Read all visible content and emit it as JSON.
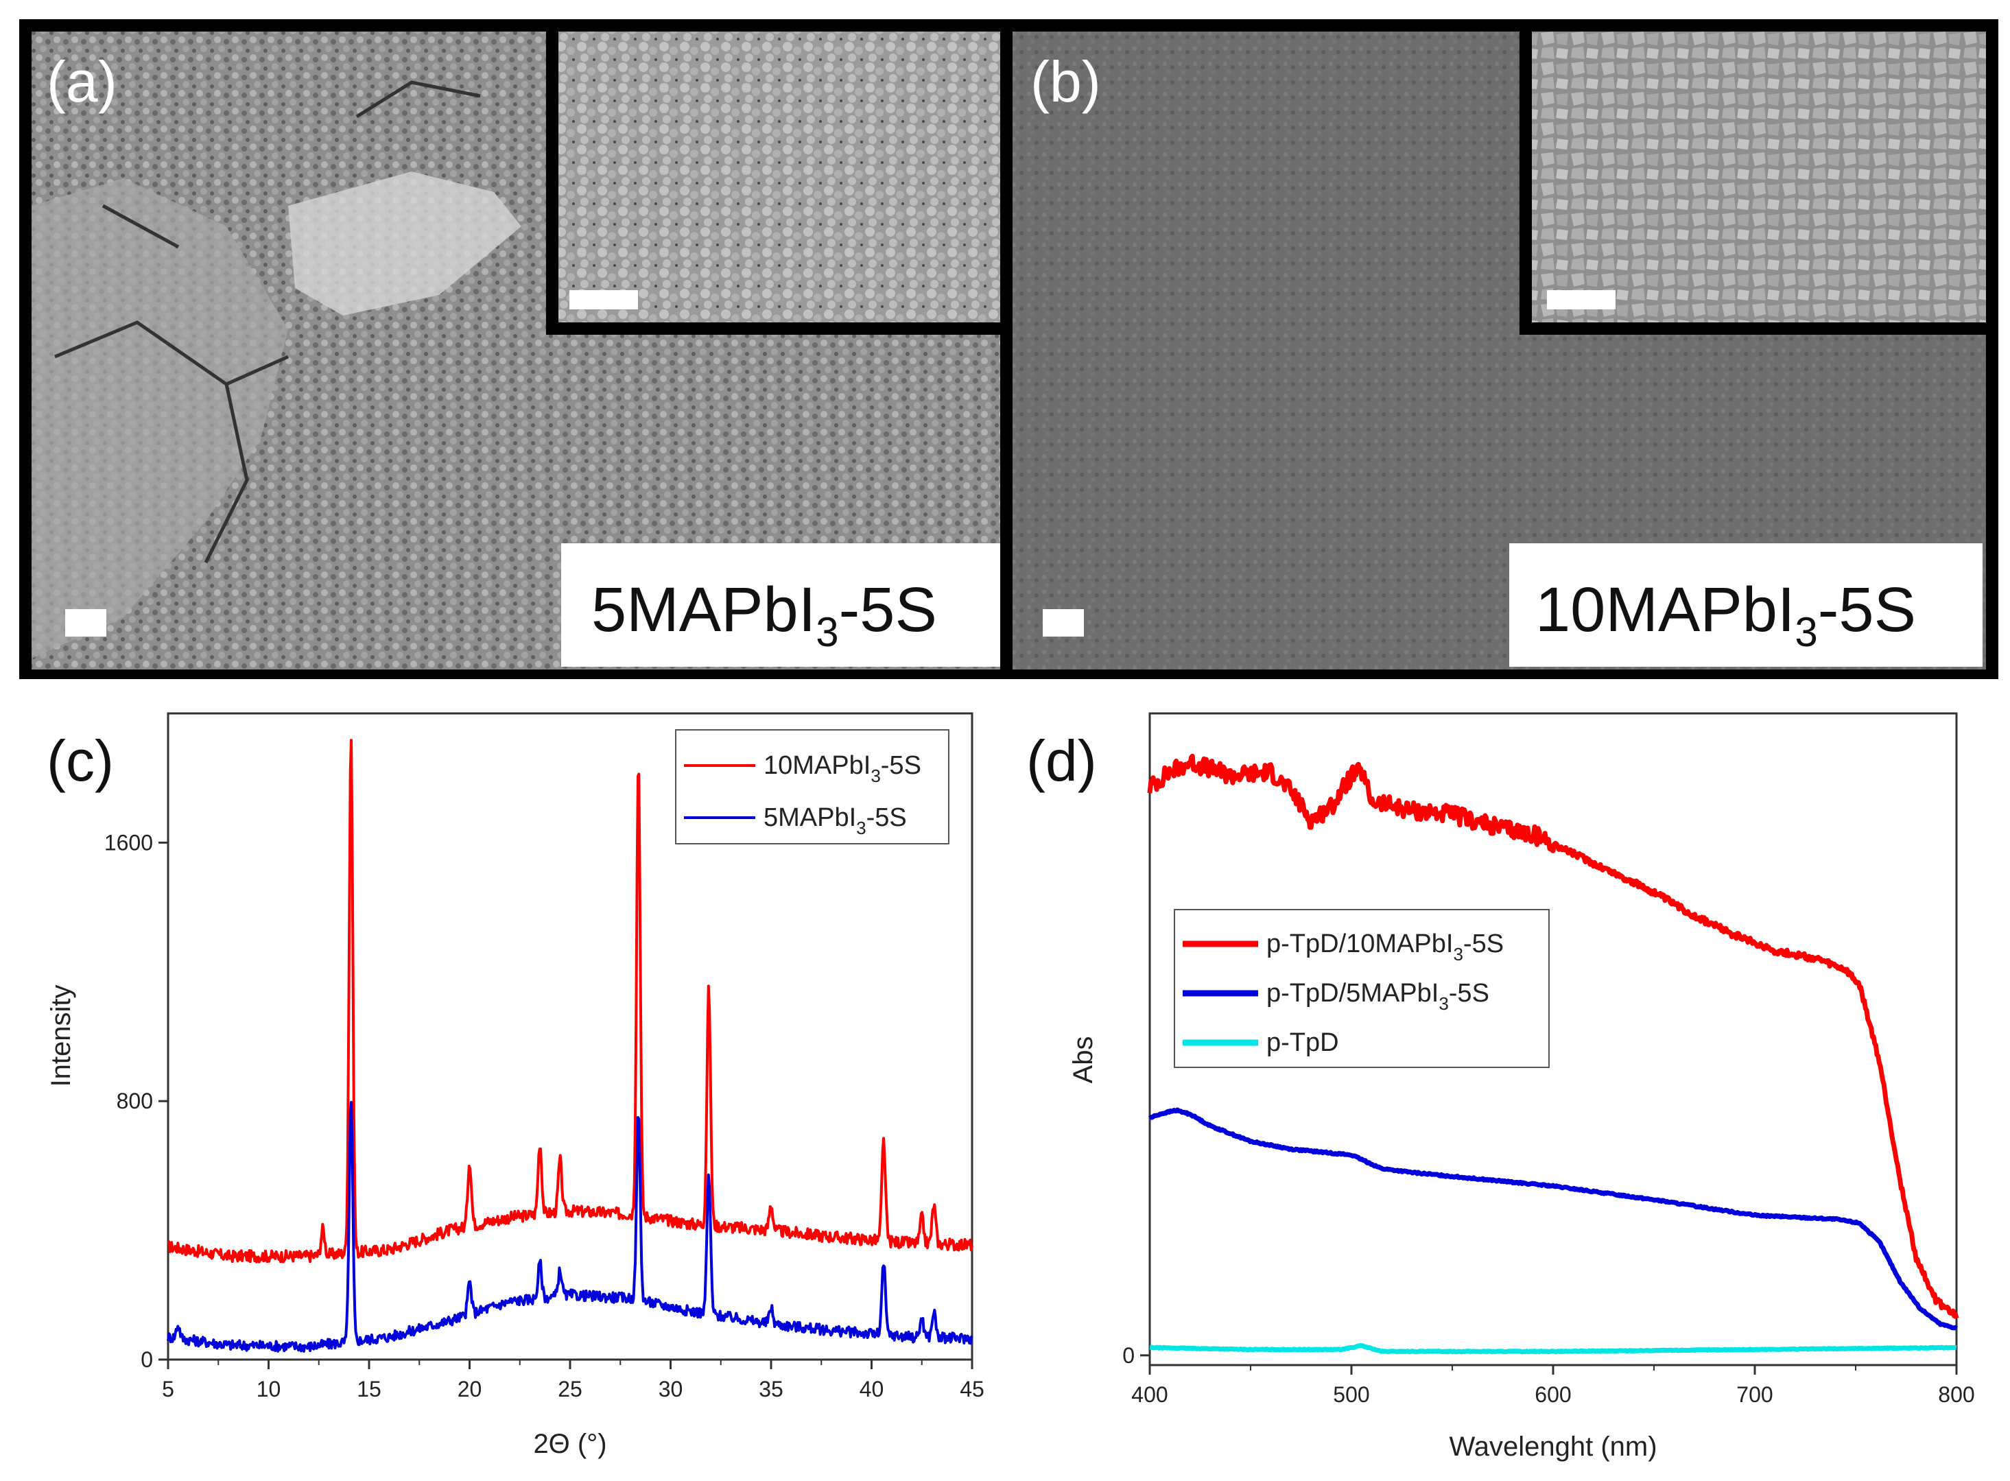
{
  "panels": {
    "a": {
      "label": "(a)",
      "sample_main": "5MAPbI",
      "sample_sub": "3",
      "sample_tail": "-5S"
    },
    "b": {
      "label": "(b)",
      "sample_main": "10MAPbI",
      "sample_sub": "3",
      "sample_tail": "-5S"
    }
  },
  "chart_data": [
    {
      "id": "c",
      "panel_label": "(c)",
      "type": "line",
      "title": "",
      "xlabel": "2Θ (°)",
      "ylabel": "Intensity",
      "xlim": [
        5,
        45
      ],
      "ylim": [
        0,
        2000
      ],
      "xticks": [
        5,
        10,
        15,
        20,
        25,
        30,
        35,
        40,
        45
      ],
      "yticks": [
        0,
        800,
        1600
      ],
      "legend": [
        {
          "main": "10MAPbI",
          "sub": "3",
          "tail": "-5S",
          "color": "#ff0000"
        },
        {
          "main": "5MAPbI",
          "sub": "3",
          "tail": "-5S",
          "color": "#0000dd"
        }
      ],
      "series": [
        {
          "name": "10MAPbI3-5S",
          "color": "#ff0000",
          "baseline": [
            [
              5,
              350
            ],
            [
              8,
              320
            ],
            [
              12,
              320
            ],
            [
              16,
              340
            ],
            [
              19,
              400
            ],
            [
              22,
              440
            ],
            [
              25,
              460
            ],
            [
              28,
              450
            ],
            [
              31,
              420
            ],
            [
              35,
              400
            ],
            [
              38,
              380
            ],
            [
              42,
              360
            ],
            [
              45,
              355
            ]
          ],
          "noise": 18,
          "peaks": [
            [
              12.7,
              80
            ],
            [
              14.1,
              1600
            ],
            [
              20.0,
              200
            ],
            [
              23.5,
              220
            ],
            [
              24.5,
              160
            ],
            [
              28.4,
              1410
            ],
            [
              31.9,
              730
            ],
            [
              35.0,
              80
            ],
            [
              40.6,
              310
            ],
            [
              42.5,
              80
            ],
            [
              43.1,
              120
            ]
          ]
        },
        {
          "name": "5MAPbI3-5S",
          "color": "#0000dd",
          "baseline": [
            [
              5,
              70
            ],
            [
              8,
              45
            ],
            [
              12,
              40
            ],
            [
              16,
              70
            ],
            [
              19,
              120
            ],
            [
              22,
              180
            ],
            [
              25,
              200
            ],
            [
              28,
              190
            ],
            [
              31,
              150
            ],
            [
              35,
              110
            ],
            [
              38,
              90
            ],
            [
              42,
              70
            ],
            [
              45,
              65
            ]
          ],
          "noise": 16,
          "peaks": [
            [
              5.5,
              40
            ],
            [
              14.1,
              740
            ],
            [
              20.0,
              100
            ],
            [
              23.5,
              110
            ],
            [
              24.5,
              80
            ],
            [
              28.4,
              570
            ],
            [
              31.9,
              430
            ],
            [
              35.0,
              50
            ],
            [
              40.6,
              220
            ],
            [
              42.5,
              60
            ],
            [
              43.1,
              80
            ]
          ]
        }
      ]
    },
    {
      "id": "d",
      "panel_label": "(d)",
      "type": "line",
      "title": "",
      "xlabel": "Wavelenght (nm)",
      "ylabel": "Abs",
      "xlim": [
        400,
        800
      ],
      "ylim": [
        -0.05,
        3.3
      ],
      "xticks": [
        400,
        500,
        600,
        700,
        800
      ],
      "yticks": [
        0
      ],
      "legend": [
        {
          "main": "p-TpD/10MAPbI",
          "sub": "3",
          "tail": "-5S",
          "color": "#ff0000"
        },
        {
          "main": "p-TpD/5MAPbI",
          "sub": "3",
          "tail": "-5S",
          "color": "#0000dd"
        },
        {
          "main": "p-TpD",
          "sub": "",
          "tail": "",
          "color": "#00e5e5"
        }
      ],
      "series": [
        {
          "name": "p-TpD/10MAPbI3-5S",
          "color": "#ff0000",
          "noise": 0.045,
          "noise_until": 600,
          "points": [
            [
              400,
              2.92
            ],
            [
              410,
              3.0
            ],
            [
              420,
              3.05
            ],
            [
              440,
              2.98
            ],
            [
              460,
              3.0
            ],
            [
              470,
              2.9
            ],
            [
              480,
              2.75
            ],
            [
              490,
              2.82
            ],
            [
              500,
              2.98
            ],
            [
              505,
              3.0
            ],
            [
              510,
              2.85
            ],
            [
              530,
              2.8
            ],
            [
              550,
              2.78
            ],
            [
              570,
              2.72
            ],
            [
              590,
              2.68
            ],
            [
              610,
              2.58
            ],
            [
              630,
              2.48
            ],
            [
              650,
              2.38
            ],
            [
              670,
              2.26
            ],
            [
              690,
              2.16
            ],
            [
              710,
              2.08
            ],
            [
              730,
              2.04
            ],
            [
              745,
              1.98
            ],
            [
              752,
              1.9
            ],
            [
              762,
              1.5
            ],
            [
              772,
              0.9
            ],
            [
              780,
              0.5
            ],
            [
              790,
              0.28
            ],
            [
              800,
              0.2
            ]
          ]
        },
        {
          "name": "p-TpD/5MAPbI3-5S",
          "color": "#0000dd",
          "noise": 0.004,
          "points": [
            [
              400,
              1.22
            ],
            [
              405,
              1.24
            ],
            [
              413,
              1.26
            ],
            [
              420,
              1.24
            ],
            [
              430,
              1.18
            ],
            [
              450,
              1.1
            ],
            [
              470,
              1.06
            ],
            [
              490,
              1.04
            ],
            [
              500,
              1.03
            ],
            [
              515,
              0.96
            ],
            [
              530,
              0.94
            ],
            [
              560,
              0.91
            ],
            [
              600,
              0.87
            ],
            [
              650,
              0.8
            ],
            [
              700,
              0.72
            ],
            [
              740,
              0.7
            ],
            [
              752,
              0.68
            ],
            [
              762,
              0.58
            ],
            [
              772,
              0.38
            ],
            [
              782,
              0.24
            ],
            [
              792,
              0.16
            ],
            [
              800,
              0.14
            ]
          ]
        },
        {
          "name": "p-TpD",
          "color": "#00e5e5",
          "noise": 0.002,
          "points": [
            [
              400,
              0.04
            ],
            [
              450,
              0.03
            ],
            [
              495,
              0.03
            ],
            [
              505,
              0.05
            ],
            [
              515,
              0.02
            ],
            [
              600,
              0.02
            ],
            [
              700,
              0.03
            ],
            [
              800,
              0.04
            ]
          ]
        }
      ]
    }
  ]
}
